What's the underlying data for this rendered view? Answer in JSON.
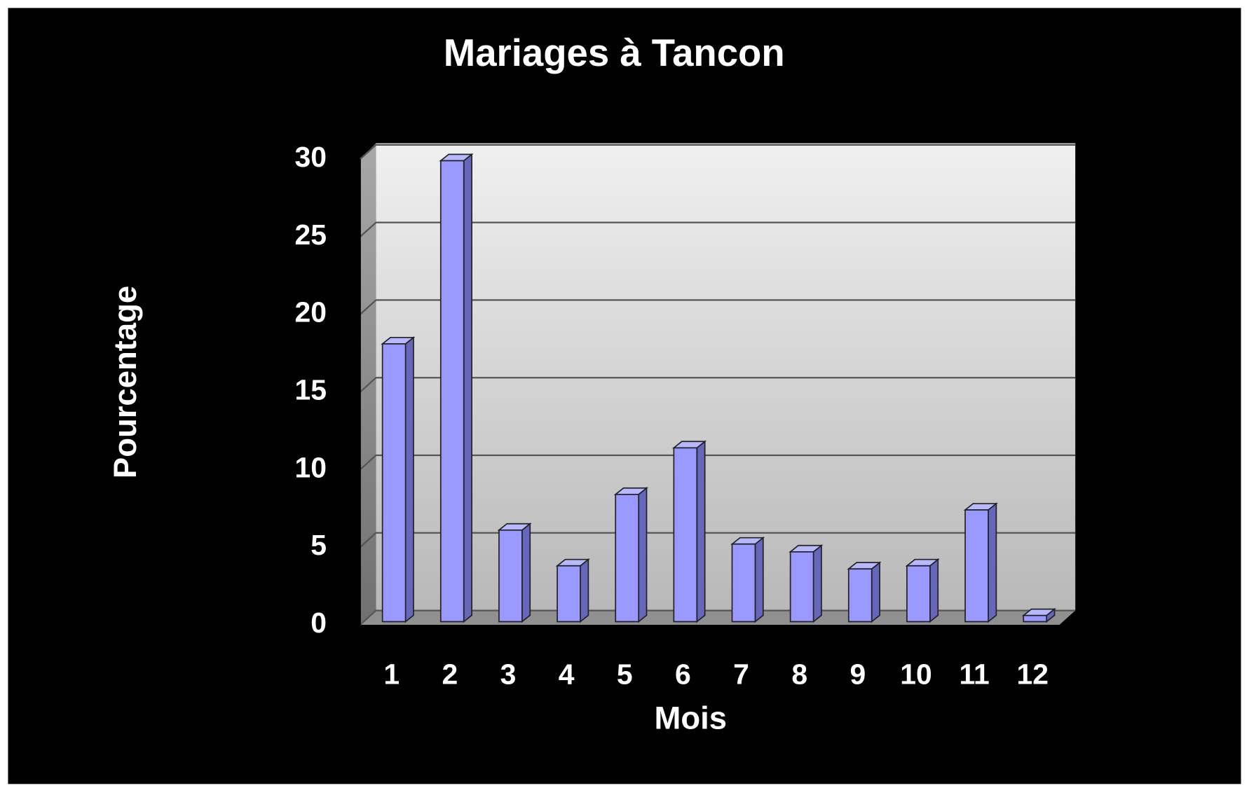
{
  "chart_data": {
    "type": "bar3d",
    "title": "Mariages à Tancon",
    "x_label": "Mois",
    "y_label": "Pourcentage",
    "categories": [
      "1",
      "2",
      "3",
      "4",
      "5",
      "6",
      "7",
      "8",
      "9",
      "10",
      "11",
      "12"
    ],
    "values": [
      18,
      29.8,
      6,
      3.7,
      8.3,
      11.3,
      5.1,
      4.6,
      3.5,
      3.7,
      7.3,
      0.5
    ],
    "color": "#9999ff",
    "ylim": [
      0,
      30
    ],
    "yticks": [
      0,
      5,
      10,
      15,
      20,
      25,
      30
    ],
    "grid": true
  }
}
